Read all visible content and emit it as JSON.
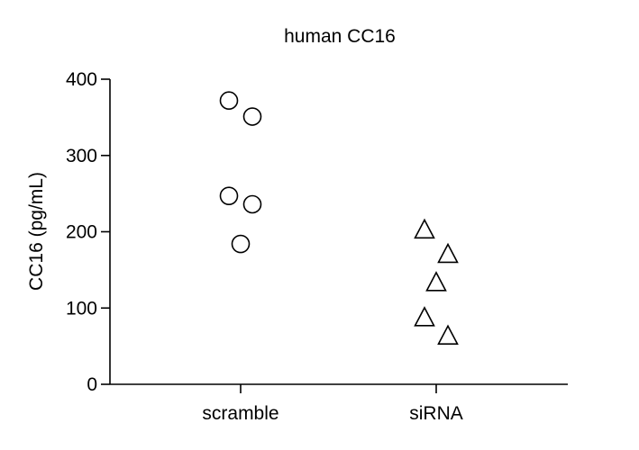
{
  "chart_data": {
    "type": "scatter",
    "title": "human CC16",
    "ylabel": "CC16 (pg/mL)",
    "xlabel": "",
    "categories": [
      "scramble",
      "siRNA"
    ],
    "ylim": [
      0,
      400
    ],
    "yticks": [
      "0",
      "100",
      "200",
      "300",
      "400"
    ],
    "grid": false,
    "series": [
      {
        "category": "scramble",
        "marker": "circle",
        "points": [
          {
            "offset": -0.2,
            "y": 372
          },
          {
            "offset": 0.2,
            "y": 351
          },
          {
            "offset": -0.2,
            "y": 247
          },
          {
            "offset": 0.2,
            "y": 236
          },
          {
            "offset": 0.0,
            "y": 184
          }
        ]
      },
      {
        "category": "siRNA",
        "marker": "triangle",
        "points": [
          {
            "offset": -0.2,
            "y": 202
          },
          {
            "offset": 0.2,
            "y": 170
          },
          {
            "offset": 0.0,
            "y": 133
          },
          {
            "offset": -0.2,
            "y": 87
          },
          {
            "offset": 0.2,
            "y": 63
          }
        ]
      }
    ]
  }
}
